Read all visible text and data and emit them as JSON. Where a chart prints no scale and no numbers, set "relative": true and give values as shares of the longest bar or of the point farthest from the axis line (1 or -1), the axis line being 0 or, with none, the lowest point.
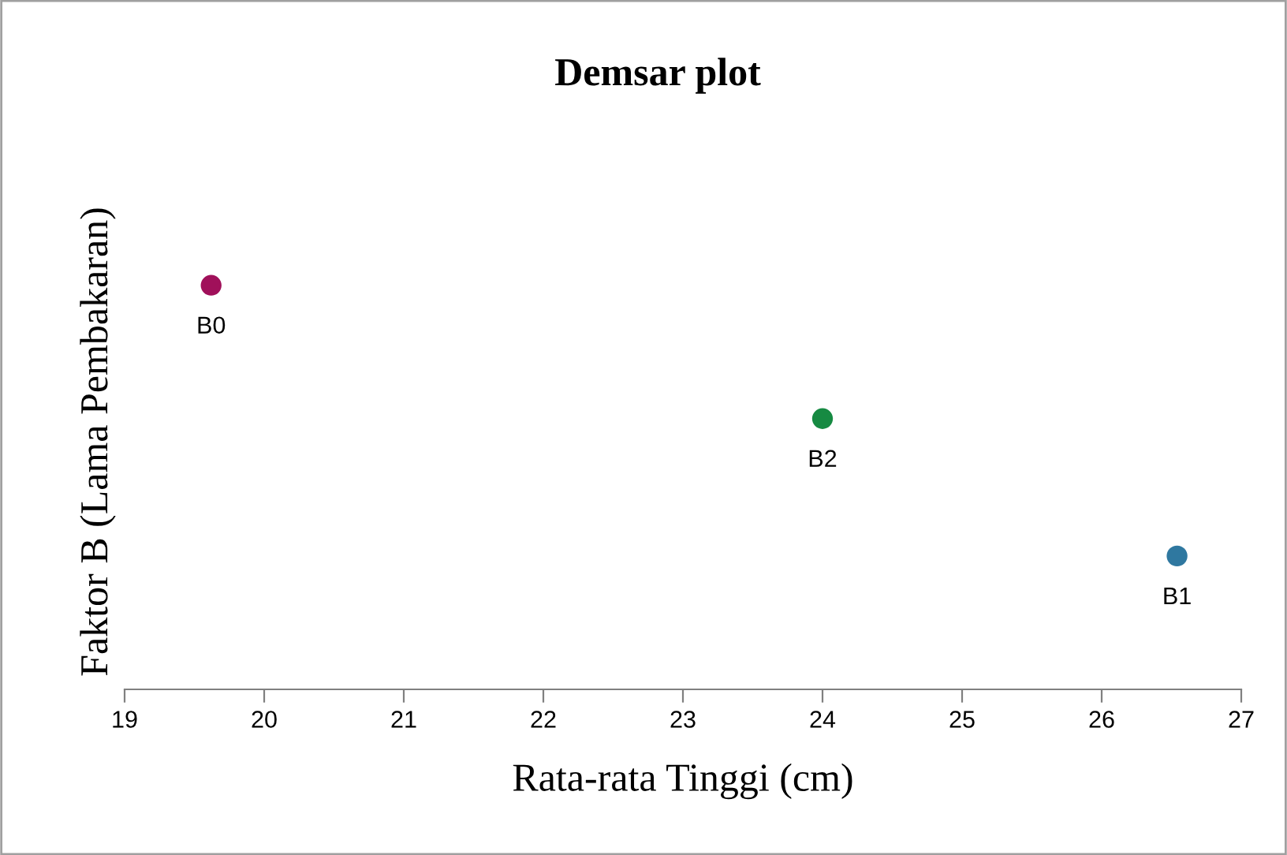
{
  "chart_data": {
    "type": "scatter",
    "title": "Demsar plot",
    "xlabel": "Rata-rata Tinggi (cm)",
    "ylabel": "Faktor B (Lama Pembakaran)",
    "relative": true,
    "xlim": [
      19,
      27
    ],
    "xticks": [
      19,
      20,
      21,
      22,
      23,
      24,
      25,
      26,
      27
    ],
    "marker": "circle",
    "x": [
      19.62,
      24.0,
      26.54
    ],
    "values": [
      1,
      0.67,
      0.33
    ],
    "colors": [
      "#a0105a",
      "#168a42",
      "#2f78a0"
    ],
    "annotations": [
      {
        "text": "B0",
        "x": 19.62,
        "y": 1
      },
      {
        "text": "B2",
        "x": 24.0,
        "y": 0.67
      },
      {
        "text": "B1",
        "x": 26.54,
        "y": 0.33
      }
    ]
  }
}
